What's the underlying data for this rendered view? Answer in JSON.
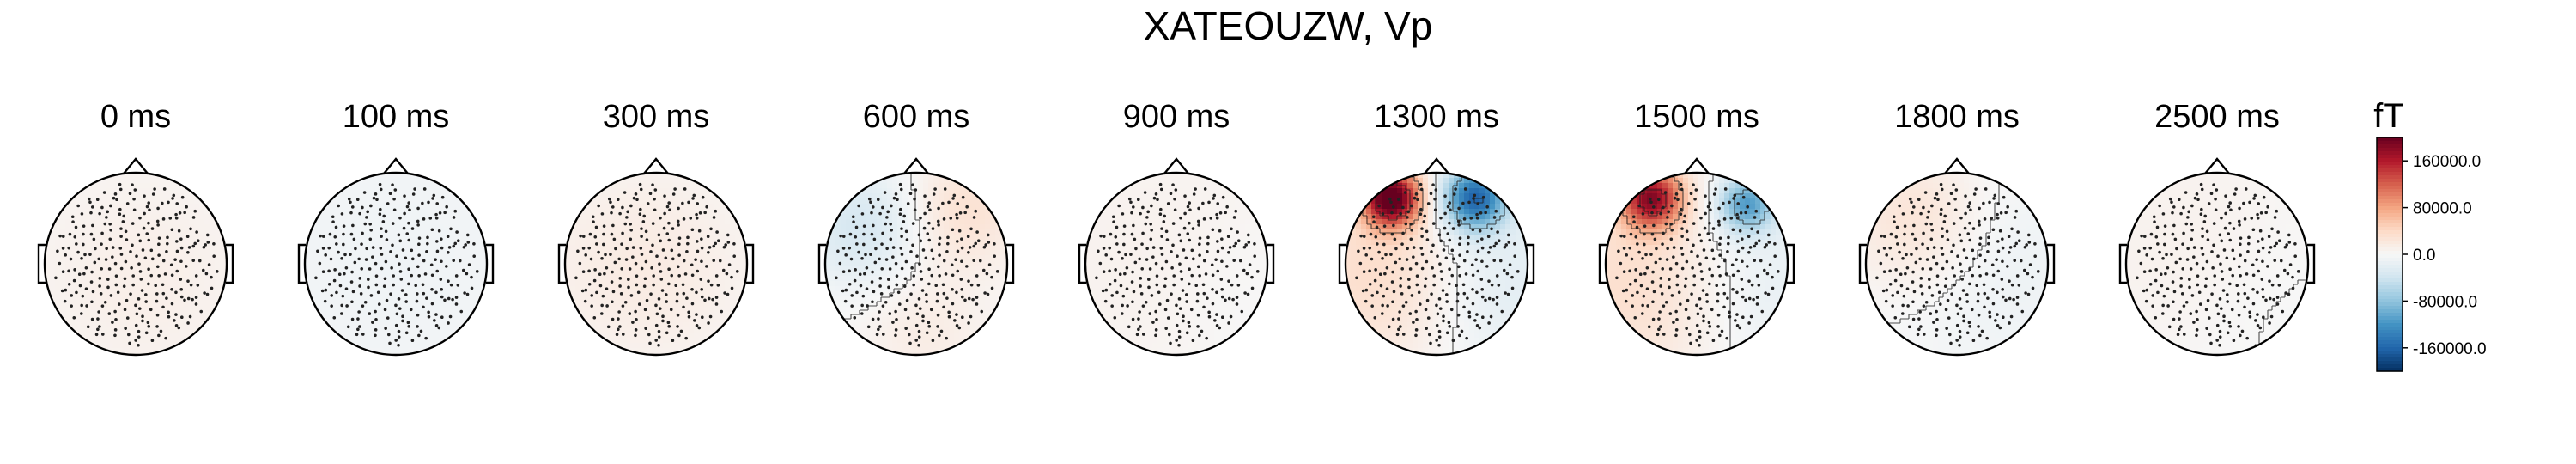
{
  "chart_data": {
    "type": "heatmap",
    "subtype": "topomap-series",
    "title": "XATEOUZW, Vp",
    "times_ms": [
      0,
      100,
      300,
      600,
      900,
      1300,
      1500,
      1800,
      2500
    ],
    "panel_titles": [
      "0 ms",
      "100 ms",
      "300 ms",
      "600 ms",
      "900 ms",
      "1300 ms",
      "1500 ms",
      "1800 ms",
      "2500 ms"
    ],
    "unit": "fT",
    "colorbar": {
      "label": "fT",
      "colormap": "RdBu_r",
      "range": [
        -200000,
        200000
      ],
      "ticks": [
        160000.0,
        80000.0,
        0.0,
        -80000.0,
        -160000.0
      ],
      "tick_labels": [
        "160000.0",
        "80000.0",
        "0.0",
        "-80000.0",
        "-160000.0"
      ],
      "colors": {
        "max": "#67001f",
        "mid_pos": "#d6604d",
        "zero": "#f7f7f7",
        "mid_neg": "#4393c3",
        "min": "#053061"
      }
    },
    "sources": [
      {
        "name": "0 ms",
        "sources": [
          {
            "u": 0.05,
            "v": 0.15,
            "s": 0.9,
            "a": 12000
          }
        ]
      },
      {
        "name": "100 ms",
        "sources": [
          {
            "u": 0.0,
            "v": 0.0,
            "s": 1.2,
            "a": -8000
          }
        ]
      },
      {
        "name": "300 ms",
        "sources": [
          {
            "u": -0.25,
            "v": 0.0,
            "s": 0.8,
            "a": 14000
          },
          {
            "u": 0.3,
            "v": 0.1,
            "s": 0.8,
            "a": 4000
          }
        ]
      },
      {
        "name": "600 ms",
        "sources": [
          {
            "u": -0.6,
            "v": -0.4,
            "s": 0.45,
            "a": -35000
          },
          {
            "u": 0.55,
            "v": -0.6,
            "s": 0.45,
            "a": 30000
          },
          {
            "u": 0.1,
            "v": 0.75,
            "s": 0.5,
            "a": 15000
          }
        ]
      },
      {
        "name": "900 ms",
        "sources": [
          {
            "u": -0.1,
            "v": 0.0,
            "s": 1.0,
            "a": 10000
          },
          {
            "u": 0.5,
            "v": 0.3,
            "s": 0.6,
            "a": -6000
          }
        ]
      },
      {
        "name": "1300 ms",
        "sources": [
          {
            "u": -0.5,
            "v": -0.72,
            "s": 0.22,
            "a": 210000
          },
          {
            "u": 0.42,
            "v": -0.72,
            "s": 0.25,
            "a": -160000
          },
          {
            "u": -0.55,
            "v": 0.1,
            "s": 0.75,
            "a": 40000
          },
          {
            "u": 0.6,
            "v": 0.2,
            "s": 0.7,
            "a": -28000
          }
        ]
      },
      {
        "name": "1500 ms",
        "sources": [
          {
            "u": -0.5,
            "v": -0.72,
            "s": 0.24,
            "a": 170000
          },
          {
            "u": 0.55,
            "v": -0.65,
            "s": 0.22,
            "a": -110000
          },
          {
            "u": -0.55,
            "v": 0.2,
            "s": 0.85,
            "a": 40000
          },
          {
            "u": 0.6,
            "v": 0.2,
            "s": 0.8,
            "a": -25000
          }
        ]
      },
      {
        "name": "1800 ms",
        "sources": [
          {
            "u": -0.45,
            "v": -0.5,
            "s": 0.55,
            "a": 30000
          },
          {
            "u": 0.4,
            "v": 0.0,
            "s": 0.8,
            "a": -12000
          }
        ]
      },
      {
        "name": "2500 ms",
        "sources": [
          {
            "u": -0.3,
            "v": -0.2,
            "s": 0.9,
            "a": 10000
          },
          {
            "u": 0.4,
            "v": 0.3,
            "s": 0.7,
            "a": -5000
          }
        ]
      }
    ]
  }
}
